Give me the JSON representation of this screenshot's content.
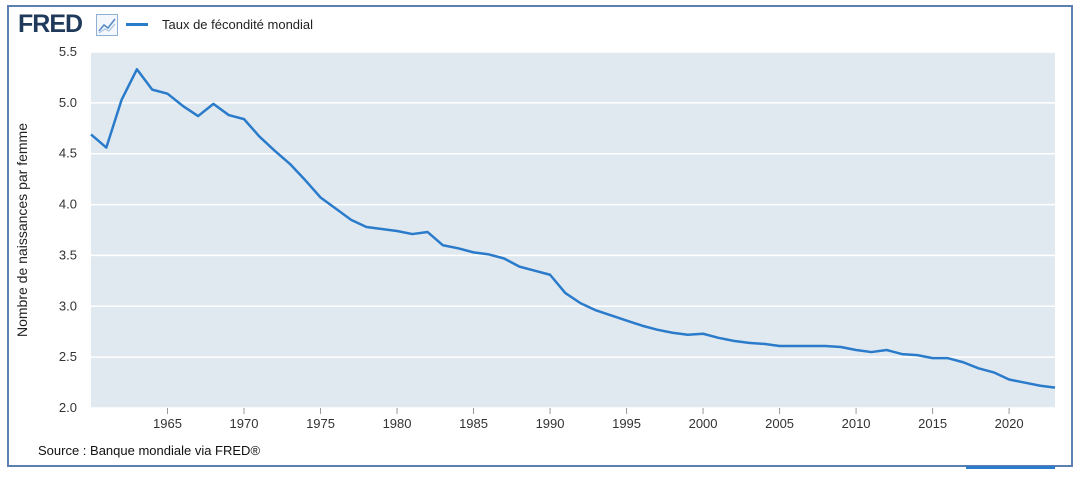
{
  "header": {
    "logo_text": "FRED",
    "logo_icon": "chart-line-icon"
  },
  "chart_data": {
    "type": "line",
    "title": "",
    "xlabel": "",
    "ylabel": "Nombre de naissances par femme",
    "xlim": [
      1960,
      2023
    ],
    "ylim": [
      2.0,
      5.5
    ],
    "x_ticks": [
      1965,
      1970,
      1975,
      1980,
      1985,
      1990,
      1995,
      2000,
      2005,
      2010,
      2015,
      2020
    ],
    "y_ticks": [
      "2.0",
      "2.5",
      "3.0",
      "3.5",
      "4.0",
      "4.5",
      "5.0",
      "5.5"
    ],
    "grid": true,
    "legend_position": "top-left",
    "series": [
      {
        "name": "Taux de fécondité mondial",
        "color": "#2b7bcb",
        "x": [
          1960,
          1961,
          1962,
          1963,
          1964,
          1965,
          1966,
          1967,
          1968,
          1969,
          1970,
          1971,
          1972,
          1973,
          1974,
          1975,
          1976,
          1977,
          1978,
          1979,
          1980,
          1981,
          1982,
          1983,
          1984,
          1985,
          1986,
          1987,
          1988,
          1989,
          1990,
          1991,
          1992,
          1993,
          1994,
          1995,
          1996,
          1997,
          1998,
          1999,
          2000,
          2001,
          2002,
          2003,
          2004,
          2005,
          2006,
          2007,
          2008,
          2009,
          2010,
          2011,
          2012,
          2013,
          2014,
          2015,
          2016,
          2017,
          2018,
          2019,
          2020,
          2021,
          2022,
          2023
        ],
        "values": [
          4.69,
          4.56,
          5.03,
          5.33,
          5.13,
          5.09,
          4.97,
          4.87,
          4.99,
          4.88,
          4.84,
          4.67,
          4.53,
          4.4,
          4.24,
          4.07,
          3.96,
          3.85,
          3.78,
          3.76,
          3.74,
          3.71,
          3.73,
          3.6,
          3.57,
          3.53,
          3.51,
          3.47,
          3.39,
          3.35,
          3.31,
          3.13,
          3.03,
          2.96,
          2.91,
          2.86,
          2.81,
          2.77,
          2.74,
          2.72,
          2.73,
          2.69,
          2.66,
          2.64,
          2.63,
          2.61,
          2.61,
          2.61,
          2.61,
          2.6,
          2.57,
          2.55,
          2.57,
          2.53,
          2.52,
          2.49,
          2.49,
          2.45,
          2.39,
          2.35,
          2.28,
          2.25,
          2.22,
          2.2
        ]
      }
    ]
  },
  "footer": {
    "source": "Source : Banque mondiale via FRED®"
  }
}
